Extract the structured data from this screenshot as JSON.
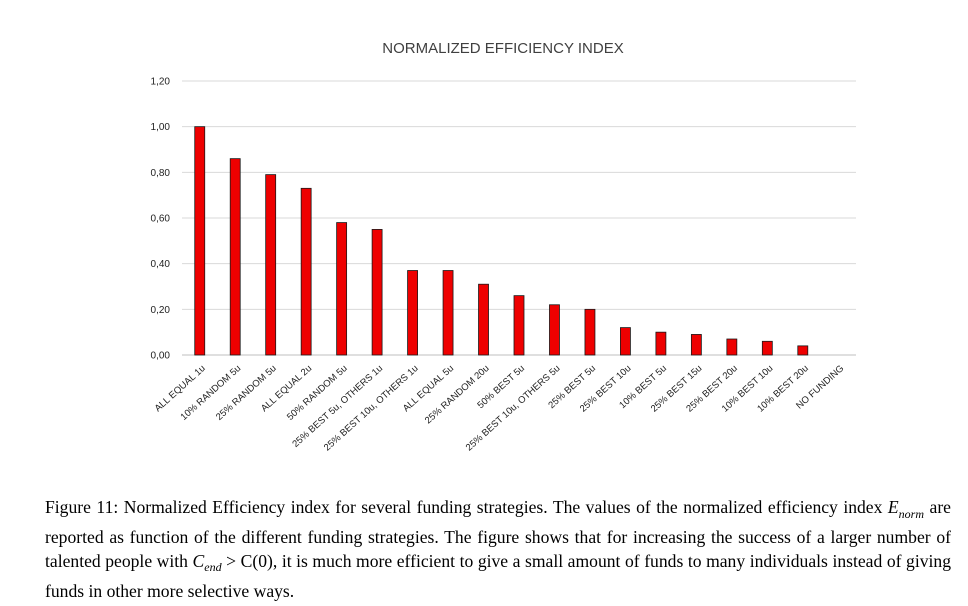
{
  "chart_data": {
    "type": "bar",
    "title": "NORMALIZED EFFICIENCY INDEX",
    "categories": [
      "ALL EQUAL 1u",
      "10% RANDOM 5u",
      "25% RANDOM 5u",
      "ALL EQUAL 2u",
      "50% RANDOM 5u",
      "25% BEST 5u, OTHERS 1u",
      "25% BEST 10u, OTHERS 1u",
      "ALL EQUAL 5u",
      "25% RANDOM 20u",
      "50% BEST 5u",
      "25% BEST 10u, OTHERS 5u",
      "25% BEST 5u",
      "25% BEST 10u",
      "10% BEST 5u",
      "25% BEST 15u",
      "25% BEST 20u",
      "10% BEST 10u",
      "10% BEST 20u",
      "NO FUNDING"
    ],
    "values": [
      1.0,
      0.86,
      0.79,
      0.73,
      0.58,
      0.55,
      0.37,
      0.37,
      0.31,
      0.26,
      0.22,
      0.2,
      0.12,
      0.1,
      0.09,
      0.07,
      0.06,
      0.04,
      0.0
    ],
    "ylim": [
      0,
      1.2
    ],
    "yticks": [
      "0,00",
      "0,20",
      "0,40",
      "0,60",
      "0,80",
      "1,00",
      "1,20"
    ],
    "grid": true,
    "xlabel": "",
    "ylabel": "",
    "bar_color": "#ee0000",
    "bar_edge_color": "#1a1a1a",
    "grid_color": "#d9d9d9"
  },
  "caption": {
    "label": "Figure 11:",
    "text_before_math": "Normalized Efficiency index for several funding strategies. The values of the normalized efficiency index",
    "math_symbol": "E",
    "math_subscript": "norm",
    "text_middle": "are reported as function of the different funding strategies. The figure shows that for increasing the success of a larger number of talented people with",
    "math_condition": "C",
    "math_condition_subscript": "end",
    "math_condition_rest": " > C(0),",
    "text_after": "it is much more efficient to give a small amount of funds to many individuals instead of giving funds in other more selective ways."
  }
}
